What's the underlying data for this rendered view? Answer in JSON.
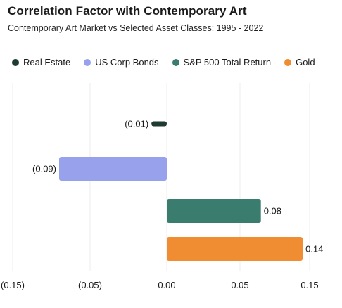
{
  "title": "Correlation Factor with Contemporary Art",
  "subtitle": "Contemporary Art Market vs Selected Asset Classes: 1995 - 2022",
  "chart_data": {
    "type": "bar",
    "orientation": "horizontal",
    "title": "Correlation Factor with Contemporary Art",
    "subtitle": "Contemporary Art Market vs Selected Asset Classes: 1995 - 2022",
    "legend_position": "top-left",
    "grid": true,
    "xlim": [
      -0.15,
      0.15
    ],
    "x_ticks": [
      -0.15,
      -0.05,
      0.0,
      0.05,
      0.15
    ],
    "x_tick_labels": [
      "(0.15)",
      "(0.05)",
      "0.00",
      "0.05",
      "0.15"
    ],
    "categories": [
      "Real Estate",
      "US Corp Bonds",
      "S&P 500 Total Return",
      "Gold"
    ],
    "values": [
      -0.01,
      -0.09,
      0.08,
      0.14
    ],
    "data_labels": [
      "(0.01)",
      "(0.09)",
      "0.08",
      "0.14"
    ],
    "colors": [
      "#1f3a2e",
      "#97a1ec",
      "#3a7d6f",
      "#f08c32"
    ]
  }
}
